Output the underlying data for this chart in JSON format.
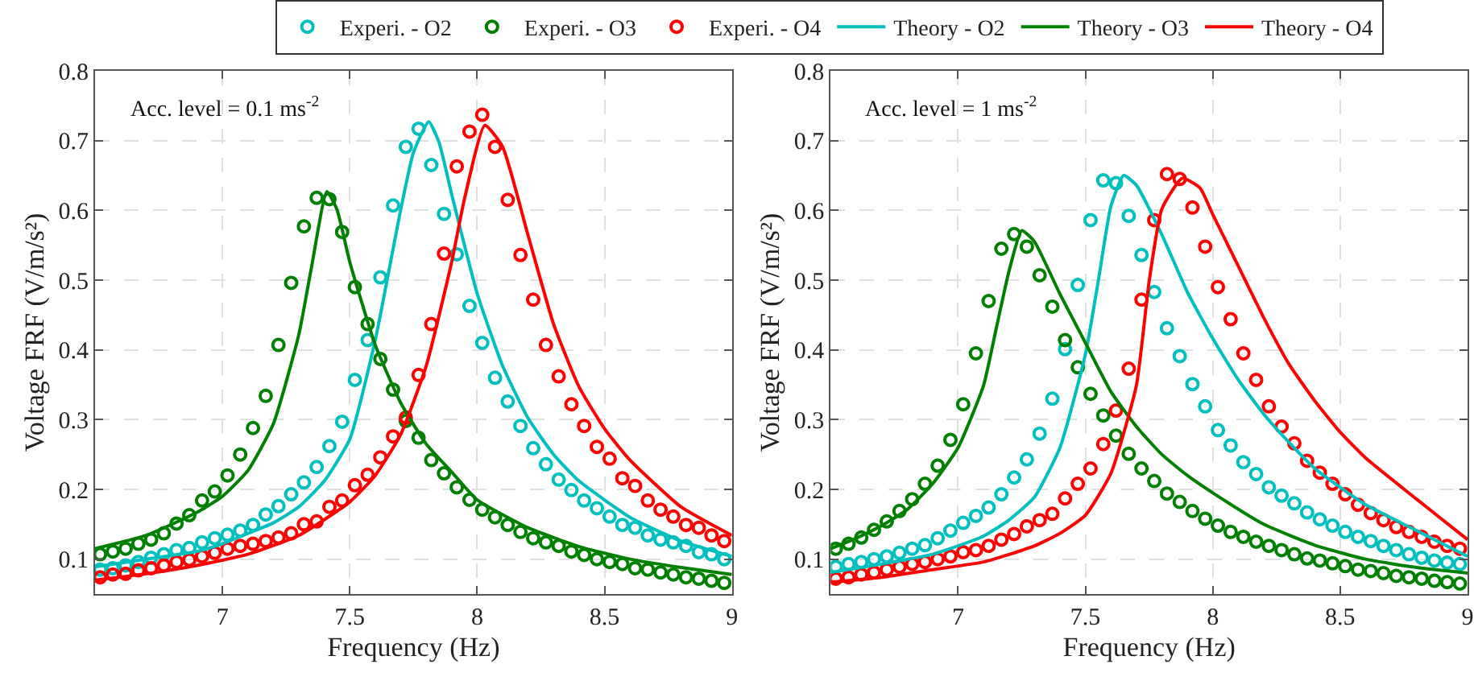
{
  "chart_data": [
    {
      "type": "scatter",
      "xlabel": "Frequency (Hz)",
      "ylabel": "Voltage FRF (V/m/s²)",
      "annotations": [
        "Acc. level = 0.1 ms$^{-2}$"
      ],
      "xlim": [
        6.5,
        9
      ],
      "xticks": [
        7,
        7.5,
        8,
        8.5,
        9
      ],
      "ylim": [
        0.05,
        0.8
      ],
      "yticks": [
        0.1,
        0.2,
        0.3,
        0.4,
        0.5,
        0.6,
        0.7,
        0.8
      ],
      "grid": true,
      "legend": "top",
      "x": [
        6.52,
        6.57,
        6.62,
        6.67,
        6.72,
        6.77,
        6.82,
        6.87,
        6.92,
        6.97,
        7.02,
        7.07,
        7.12,
        7.17,
        7.22,
        7.27,
        7.32,
        7.37,
        7.42,
        7.47,
        7.52,
        7.57,
        7.62,
        7.67,
        7.72,
        7.77,
        7.82,
        7.87,
        7.92,
        7.97,
        8.02,
        8.07,
        8.12,
        8.17,
        8.22,
        8.27,
        8.32,
        8.37,
        8.42,
        8.47,
        8.52,
        8.57,
        8.62,
        8.67,
        8.72,
        8.77,
        8.82,
        8.87,
        8.92,
        8.97
      ],
      "series": [
        {
          "name": "Experi. - O2",
          "marker": "circle",
          "color": "#00bfbf",
          "values": [
            0.085,
            0.087,
            0.091,
            0.096,
            0.102,
            0.107,
            0.113,
            0.116,
            0.124,
            0.13,
            0.135,
            0.141,
            0.149,
            0.164,
            0.176,
            0.193,
            0.21,
            0.232,
            0.262,
            0.297,
            0.357,
            0.414,
            0.504,
            0.607,
            0.691,
            0.717,
            0.665,
            0.595,
            0.537,
            0.463,
            0.41,
            0.36,
            0.326,
            0.291,
            0.259,
            0.236,
            0.214,
            0.199,
            0.184,
            0.173,
            0.161,
            0.149,
            0.145,
            0.134,
            0.128,
            0.124,
            0.119,
            0.11,
            0.107,
            0.1
          ]
        },
        {
          "name": "Experi. - O3",
          "marker": "circle",
          "color": "#008000",
          "values": [
            0.107,
            0.111,
            0.115,
            0.122,
            0.128,
            0.137,
            0.151,
            0.163,
            0.184,
            0.197,
            0.22,
            0.25,
            0.288,
            0.334,
            0.407,
            0.496,
            0.577,
            0.618,
            0.616,
            0.569,
            0.49,
            0.437,
            0.387,
            0.343,
            0.298,
            0.274,
            0.242,
            0.223,
            0.203,
            0.185,
            0.171,
            0.16,
            0.149,
            0.139,
            0.13,
            0.124,
            0.119,
            0.111,
            0.106,
            0.1,
            0.096,
            0.093,
            0.087,
            0.085,
            0.081,
            0.078,
            0.074,
            0.072,
            0.069,
            0.066
          ]
        },
        {
          "name": "Experi. - O4",
          "marker": "circle",
          "color": "#ff0000",
          "values": [
            0.074,
            0.078,
            0.079,
            0.084,
            0.087,
            0.091,
            0.096,
            0.099,
            0.104,
            0.109,
            0.115,
            0.119,
            0.122,
            0.126,
            0.131,
            0.137,
            0.15,
            0.154,
            0.175,
            0.184,
            0.206,
            0.221,
            0.246,
            0.276,
            0.303,
            0.364,
            0.437,
            0.538,
            0.663,
            0.713,
            0.737,
            0.691,
            0.615,
            0.536,
            0.472,
            0.407,
            0.362,
            0.322,
            0.291,
            0.261,
            0.244,
            0.216,
            0.205,
            0.184,
            0.171,
            0.161,
            0.149,
            0.145,
            0.134,
            0.126
          ]
        },
        {
          "name": "Theory - O2",
          "type": "line",
          "marker": "none",
          "color": "#00bfbf",
          "x": [
            6.5,
            6.7,
            6.9,
            7.0,
            7.1,
            7.2,
            7.3,
            7.4,
            7.5,
            7.6,
            7.7,
            7.75,
            7.81,
            7.85,
            7.9,
            8.0,
            8.1,
            8.2,
            8.3,
            8.4,
            8.6,
            8.8,
            9.0
          ],
          "values": [
            0.089,
            0.1,
            0.111,
            0.122,
            0.137,
            0.152,
            0.175,
            0.212,
            0.272,
            0.414,
            0.601,
            0.683,
            0.727,
            0.698,
            0.623,
            0.481,
            0.377,
            0.302,
            0.25,
            0.212,
            0.16,
            0.126,
            0.104
          ]
        },
        {
          "name": "Theory - O3",
          "type": "line",
          "marker": "none",
          "color": "#008000",
          "x": [
            6.5,
            6.7,
            6.9,
            7.0,
            7.1,
            7.2,
            7.3,
            7.35,
            7.41,
            7.45,
            7.5,
            7.6,
            7.7,
            7.8,
            7.9,
            8.0,
            8.2,
            8.4,
            8.6,
            8.8,
            9.0
          ],
          "values": [
            0.115,
            0.134,
            0.167,
            0.19,
            0.227,
            0.294,
            0.422,
            0.519,
            0.627,
            0.601,
            0.526,
            0.407,
            0.324,
            0.265,
            0.225,
            0.185,
            0.145,
            0.118,
            0.1,
            0.088,
            0.078
          ]
        },
        {
          "name": "Theory - O4",
          "type": "line",
          "marker": "none",
          "color": "#ff0000",
          "x": [
            6.5,
            6.7,
            6.9,
            7.1,
            7.3,
            7.5,
            7.6,
            7.7,
            7.8,
            7.9,
            7.95,
            8.03,
            8.1,
            8.2,
            8.3,
            8.4,
            8.5,
            8.6,
            8.8,
            9.0
          ],
          "values": [
            0.07,
            0.079,
            0.091,
            0.107,
            0.134,
            0.182,
            0.22,
            0.279,
            0.377,
            0.526,
            0.616,
            0.722,
            0.691,
            0.564,
            0.437,
            0.347,
            0.287,
            0.242,
            0.175,
            0.134
          ]
        }
      ]
    },
    {
      "type": "scatter",
      "xlabel": "Frequency (Hz)",
      "ylabel": "Voltage FRF (V/m/s²)",
      "annotations": [
        "Acc. level = 1 ms$^{-2}$"
      ],
      "xlim": [
        6.5,
        9
      ],
      "xticks": [
        7,
        7.5,
        8,
        8.5,
        9
      ],
      "ylim": [
        0.05,
        0.8
      ],
      "yticks": [
        0.1,
        0.2,
        0.3,
        0.4,
        0.5,
        0.6,
        0.7,
        0.8
      ],
      "grid": true,
      "legend": "top",
      "x": [
        6.52,
        6.57,
        6.62,
        6.67,
        6.72,
        6.77,
        6.82,
        6.87,
        6.92,
        6.97,
        7.02,
        7.07,
        7.12,
        7.17,
        7.22,
        7.27,
        7.32,
        7.37,
        7.42,
        7.47,
        7.52,
        7.57,
        7.62,
        7.67,
        7.72,
        7.77,
        7.82,
        7.87,
        7.92,
        7.97,
        8.02,
        8.07,
        8.12,
        8.17,
        8.22,
        8.27,
        8.32,
        8.37,
        8.42,
        8.47,
        8.52,
        8.57,
        8.62,
        8.67,
        8.72,
        8.77,
        8.82,
        8.87,
        8.92,
        8.97
      ],
      "series": [
        {
          "name": "Experi. - O2",
          "marker": "circle",
          "color": "#00bfbf",
          "values": [
            0.089,
            0.093,
            0.096,
            0.1,
            0.104,
            0.109,
            0.115,
            0.12,
            0.13,
            0.141,
            0.152,
            0.162,
            0.174,
            0.193,
            0.217,
            0.243,
            0.28,
            0.33,
            0.401,
            0.493,
            0.586,
            0.643,
            0.639,
            0.592,
            0.536,
            0.483,
            0.431,
            0.391,
            0.351,
            0.319,
            0.285,
            0.263,
            0.239,
            0.222,
            0.203,
            0.191,
            0.18,
            0.167,
            0.157,
            0.148,
            0.139,
            0.132,
            0.126,
            0.119,
            0.113,
            0.107,
            0.102,
            0.098,
            0.095,
            0.093
          ]
        },
        {
          "name": "Experi. - O3",
          "marker": "circle",
          "color": "#008000",
          "values": [
            0.115,
            0.122,
            0.131,
            0.142,
            0.154,
            0.169,
            0.186,
            0.208,
            0.234,
            0.271,
            0.322,
            0.395,
            0.47,
            0.545,
            0.566,
            0.548,
            0.507,
            0.462,
            0.414,
            0.375,
            0.337,
            0.306,
            0.277,
            0.251,
            0.23,
            0.212,
            0.194,
            0.182,
            0.169,
            0.158,
            0.148,
            0.139,
            0.132,
            0.125,
            0.119,
            0.113,
            0.107,
            0.101,
            0.098,
            0.094,
            0.09,
            0.085,
            0.083,
            0.08,
            0.076,
            0.074,
            0.072,
            0.069,
            0.067,
            0.065
          ]
        },
        {
          "name": "Experi. - O4",
          "marker": "circle",
          "color": "#ff0000",
          "values": [
            0.072,
            0.074,
            0.078,
            0.081,
            0.085,
            0.089,
            0.093,
            0.096,
            0.1,
            0.104,
            0.11,
            0.113,
            0.119,
            0.128,
            0.136,
            0.147,
            0.156,
            0.165,
            0.187,
            0.208,
            0.23,
            0.265,
            0.313,
            0.373,
            0.472,
            0.586,
            0.652,
            0.645,
            0.604,
            0.548,
            0.49,
            0.444,
            0.395,
            0.357,
            0.319,
            0.29,
            0.266,
            0.241,
            0.224,
            0.208,
            0.193,
            0.178,
            0.166,
            0.156,
            0.146,
            0.139,
            0.132,
            0.125,
            0.119,
            0.115
          ]
        },
        {
          "name": "Theory - O2",
          "type": "line",
          "marker": "none",
          "color": "#00bfbf",
          "x": [
            6.5,
            6.7,
            6.9,
            7.0,
            7.1,
            7.2,
            7.3,
            7.4,
            7.5,
            7.55,
            7.6,
            7.65,
            7.7,
            7.8,
            7.9,
            8.0,
            8.1,
            8.2,
            8.3,
            8.4,
            8.6,
            8.8,
            9.0
          ],
          "values": [
            0.081,
            0.093,
            0.107,
            0.119,
            0.133,
            0.156,
            0.189,
            0.26,
            0.394,
            0.498,
            0.606,
            0.65,
            0.636,
            0.565,
            0.483,
            0.416,
            0.357,
            0.308,
            0.267,
            0.23,
            0.178,
            0.141,
            0.104
          ]
        },
        {
          "name": "Theory - O3",
          "type": "line",
          "marker": "none",
          "color": "#008000",
          "x": [
            6.5,
            6.6,
            6.7,
            6.8,
            6.9,
            7.0,
            7.1,
            7.15,
            7.2,
            7.25,
            7.3,
            7.4,
            7.5,
            7.6,
            7.7,
            7.8,
            7.9,
            8.0,
            8.2,
            8.4,
            8.6,
            8.8,
            9.0
          ],
          "values": [
            0.115,
            0.13,
            0.148,
            0.171,
            0.208,
            0.26,
            0.349,
            0.431,
            0.513,
            0.571,
            0.555,
            0.48,
            0.41,
            0.34,
            0.29,
            0.25,
            0.22,
            0.195,
            0.15,
            0.12,
            0.1,
            0.088,
            0.08
          ]
        },
        {
          "name": "Theory - O4",
          "type": "line",
          "marker": "none",
          "color": "#ff0000",
          "x": [
            6.5,
            6.7,
            6.9,
            7.1,
            7.3,
            7.4,
            7.5,
            7.6,
            7.7,
            7.75,
            7.8,
            7.88,
            7.95,
            8.0,
            8.1,
            8.2,
            8.3,
            8.4,
            8.5,
            8.6,
            8.8,
            9.0
          ],
          "values": [
            0.067,
            0.074,
            0.085,
            0.096,
            0.119,
            0.137,
            0.163,
            0.223,
            0.349,
            0.498,
            0.602,
            0.646,
            0.632,
            0.594,
            0.52,
            0.446,
            0.379,
            0.327,
            0.282,
            0.245,
            0.186,
            0.128
          ]
        }
      ]
    }
  ]
}
